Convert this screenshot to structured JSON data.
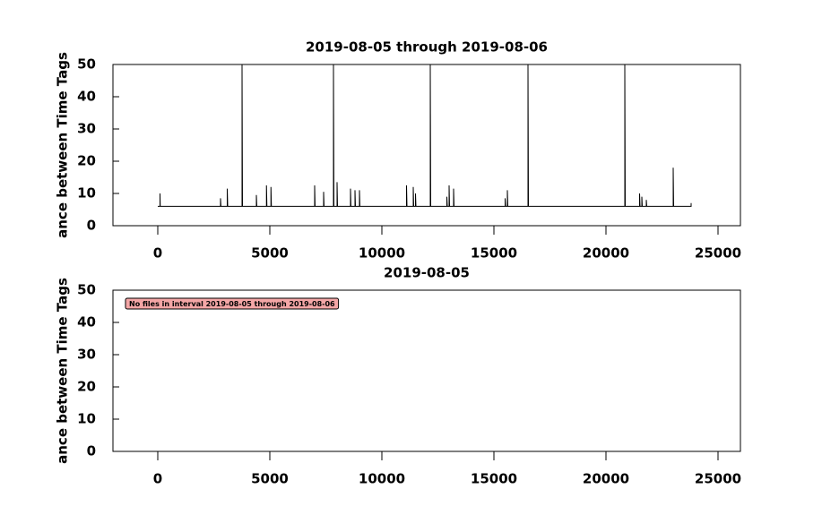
{
  "chart_data": [
    {
      "type": "line",
      "title": "2019-08-05 through 2019-08-06",
      "y_label": "ance between Time Tags",
      "x": [
        0,
        100,
        100,
        110,
        2800,
        2800,
        2820,
        3100,
        3100,
        3120,
        3760,
        3760,
        3780,
        4400,
        4400,
        4420,
        4850,
        4850,
        4870,
        5050,
        5050,
        5070,
        7000,
        7000,
        7020,
        7400,
        7400,
        7420,
        7840,
        7840,
        7860,
        8000,
        8000,
        8020,
        8600,
        8600,
        8620,
        8800,
        8800,
        8820,
        9000,
        9000,
        9020,
        11100,
        11100,
        11120,
        11400,
        11400,
        11420,
        11500,
        11500,
        11520,
        12160,
        12160,
        12180,
        12900,
        12900,
        12920,
        13000,
        13000,
        13020,
        13200,
        13200,
        13220,
        15500,
        15500,
        15520,
        15600,
        15600,
        15620,
        16520,
        16520,
        16540,
        20840,
        20840,
        20860,
        21500,
        21500,
        21520,
        21600,
        21600,
        21620,
        21800,
        21800,
        21820,
        23000,
        23000,
        23020,
        23800,
        23800
      ],
      "values": [
        6,
        6,
        10,
        6,
        6,
        8.5,
        6,
        6,
        11.5,
        6,
        6,
        50,
        6,
        6,
        9.5,
        6,
        6,
        12.5,
        6,
        6,
        12,
        6,
        6,
        12.5,
        6,
        6,
        10.5,
        6,
        6,
        50,
        6,
        6,
        13.5,
        6,
        6,
        11.5,
        6,
        6,
        11,
        6,
        6,
        11,
        6,
        6,
        12.5,
        6,
        6,
        12,
        6,
        6,
        10,
        6,
        6,
        50,
        6,
        6,
        9,
        6,
        6,
        12.5,
        6,
        6,
        11.5,
        6,
        6,
        8.5,
        6,
        6,
        11,
        6,
        6,
        50,
        6,
        6,
        50,
        6,
        6,
        10,
        6,
        6,
        9,
        6,
        6,
        8,
        6,
        6,
        18,
        6,
        6,
        7
      ],
      "color": "#000000",
      "xlim": [
        -2000,
        26000
      ],
      "xticks": [
        0,
        5000,
        10000,
        15000,
        20000,
        25000
      ],
      "ylim": [
        0,
        50
      ],
      "yticks": [
        0,
        10,
        20,
        30,
        40,
        50
      ]
    },
    {
      "type": "line",
      "title": "2019-08-05",
      "y_label": "ance between Time Tags",
      "annotation": "No files in interval 2019-08-05 through 2019-08-06",
      "x": [],
      "values": [],
      "color": "#000000",
      "xlim": [
        -2000,
        26000
      ],
      "xticks": [
        0,
        5000,
        10000,
        15000,
        20000,
        25000
      ],
      "ylim": [
        0,
        50
      ],
      "yticks": [
        0,
        10,
        20,
        30,
        40,
        50
      ]
    }
  ]
}
